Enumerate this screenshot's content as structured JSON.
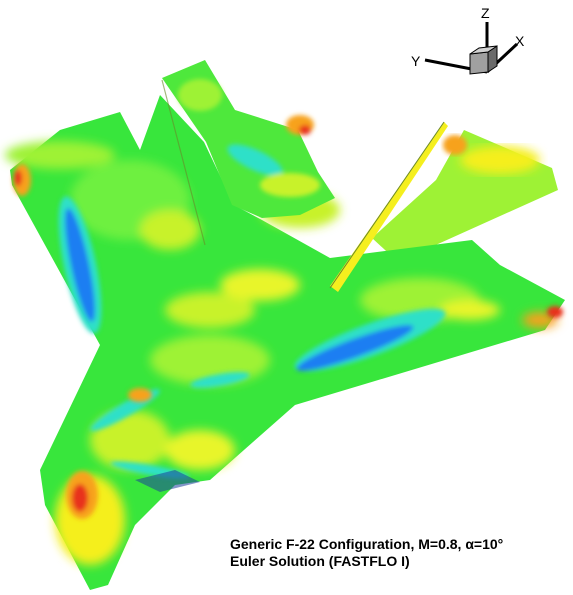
{
  "figure": {
    "caption_line1": "Generic F-22 Configuration, M=0.8, α=10°",
    "caption_line2": "Euler Solution (FASTFLO I)"
  },
  "triad": {
    "x_label": "X",
    "y_label": "Y",
    "z_label": "Z"
  },
  "colors": {
    "background": "#ffffff",
    "green": "#22e63a",
    "light_green": "#7ef25a",
    "yellow_green": "#c8f22a",
    "yellow": "#f5ef1e",
    "orange": "#f7a21b",
    "red": "#e8321a",
    "cyan": "#2fe0c8",
    "blue": "#1b7ef2"
  }
}
